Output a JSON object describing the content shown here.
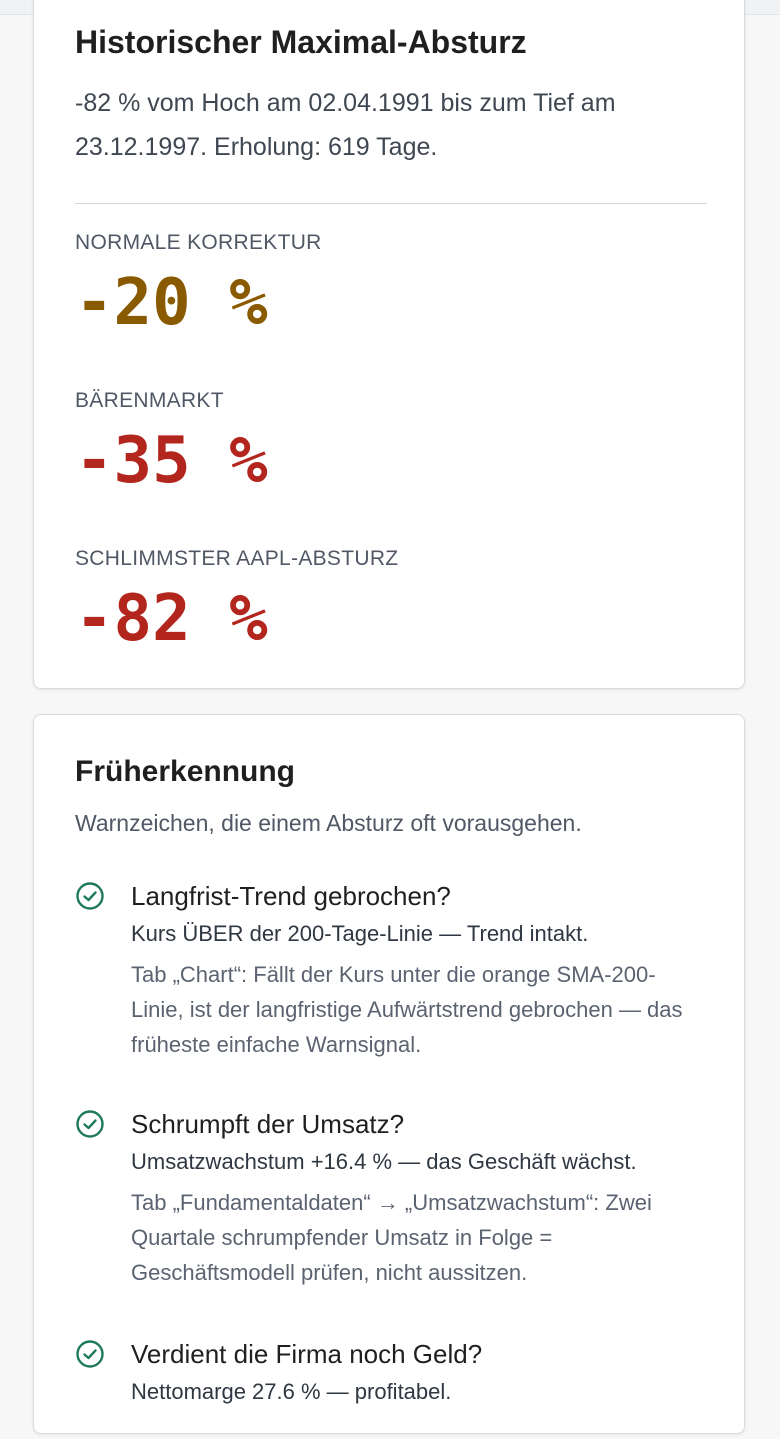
{
  "colors": {
    "amber": "#8a5a00",
    "red": "#b3261e",
    "check_green": "#1f7a5a"
  },
  "drawdown": {
    "title": "Historischer Maximal-Absturz",
    "description": "-82 % vom Hoch am 02.04.1991 bis zum Tief am 23.12.1997. Erholung: 619 Tage.",
    "metrics": [
      {
        "label": "NORMALE KORREKTUR",
        "value": "-20 %",
        "color": "amber"
      },
      {
        "label": "BÄRENMARKT",
        "value": "-35 %",
        "color": "red"
      },
      {
        "label": "SCHLIMMSTER AAPL-ABSTURZ",
        "value": "-82 %",
        "color": "red"
      }
    ]
  },
  "early_warning": {
    "title": "Früherkennung",
    "subtitle": "Warnzeichen, die einem Absturz oft vorausgehen.",
    "items": [
      {
        "icon": "check-circle-icon",
        "question": "Langfrist-Trend gebrochen?",
        "status": "Kurs ÜBER der 200-Tage-Linie — Trend intakt.",
        "hint": "Tab „Chart“: Fällt der Kurs unter die orange SMA-200-Linie, ist der langfristige Aufwärtstrend gebrochen — das früheste einfache Warnsignal."
      },
      {
        "icon": "check-circle-icon",
        "question": "Schrumpft der Umsatz?",
        "status": "Umsatzwachstum +16.4 % — das Geschäft wächst.",
        "hint": "Tab „Fundamentaldaten“ → „Umsatzwachstum“: Zwei Quartale schrumpfender Umsatz in Folge = Geschäftsmodell prüfen, nicht aussitzen."
      },
      {
        "icon": "check-circle-icon",
        "question": "Verdient die Firma noch Geld?",
        "status": "Nettomarge 27.6 % — profitabel.",
        "hint": ""
      }
    ]
  }
}
